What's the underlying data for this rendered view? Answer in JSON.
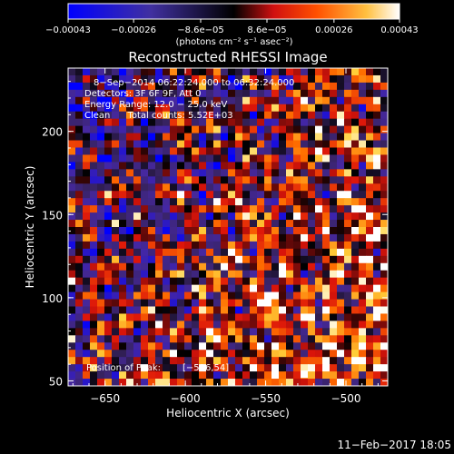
{
  "chart_data": {
    "type": "heatmap",
    "title": "Reconstructed RHESSI Image",
    "xlabel": "Heliocentric X (arcsec)",
    "ylabel": "Heliocentric Y (arcsec)",
    "xlim": [
      -673,
      -474
    ],
    "ylim": [
      47,
      238
    ],
    "x_ticks": [
      -650,
      -600,
      -550,
      -500
    ],
    "x_tick_labels": [
      "−650",
      "−600",
      "−550",
      "−500"
    ],
    "y_ticks": [
      50,
      100,
      150,
      200
    ],
    "y_tick_labels": [
      "50",
      "100",
      "150",
      "200"
    ],
    "colorbar": {
      "range": [
        -0.00043,
        0.00043
      ],
      "ticks": [
        -0.00043,
        -0.00026,
        -8.6e-05,
        8.6e-05,
        0.00026,
        0.00043
      ],
      "tick_labels": [
        "−0.00043",
        "−0.00026",
        "−8.6e−05",
        "8.6e−05",
        "0.00026",
        "0.00043"
      ],
      "unit_label": "(photons cm⁻² s⁻¹ asec⁻²)"
    },
    "annotations": [
      "8−Sep−2014 06:22:24.000 to 06:32:24.000",
      "Detectors: 3F 6F 9F, Att 0",
      "Energy Range: 12.0 − 25.0 keV",
      "Clean      Total counts: 5.52E+03"
    ],
    "peak": {
      "label": "Position of Peak:",
      "value": "[−526,54]",
      "x": -526,
      "y": 54
    },
    "timestamp": "11−Feb−2017 18:05",
    "grid": false,
    "colors": {
      "low": "#0000ff",
      "mid_low": "#3c2a88",
      "zero": "#000000",
      "mid_high": "#e02000",
      "high": "#ffd23c",
      "max": "#ffffff"
    }
  }
}
